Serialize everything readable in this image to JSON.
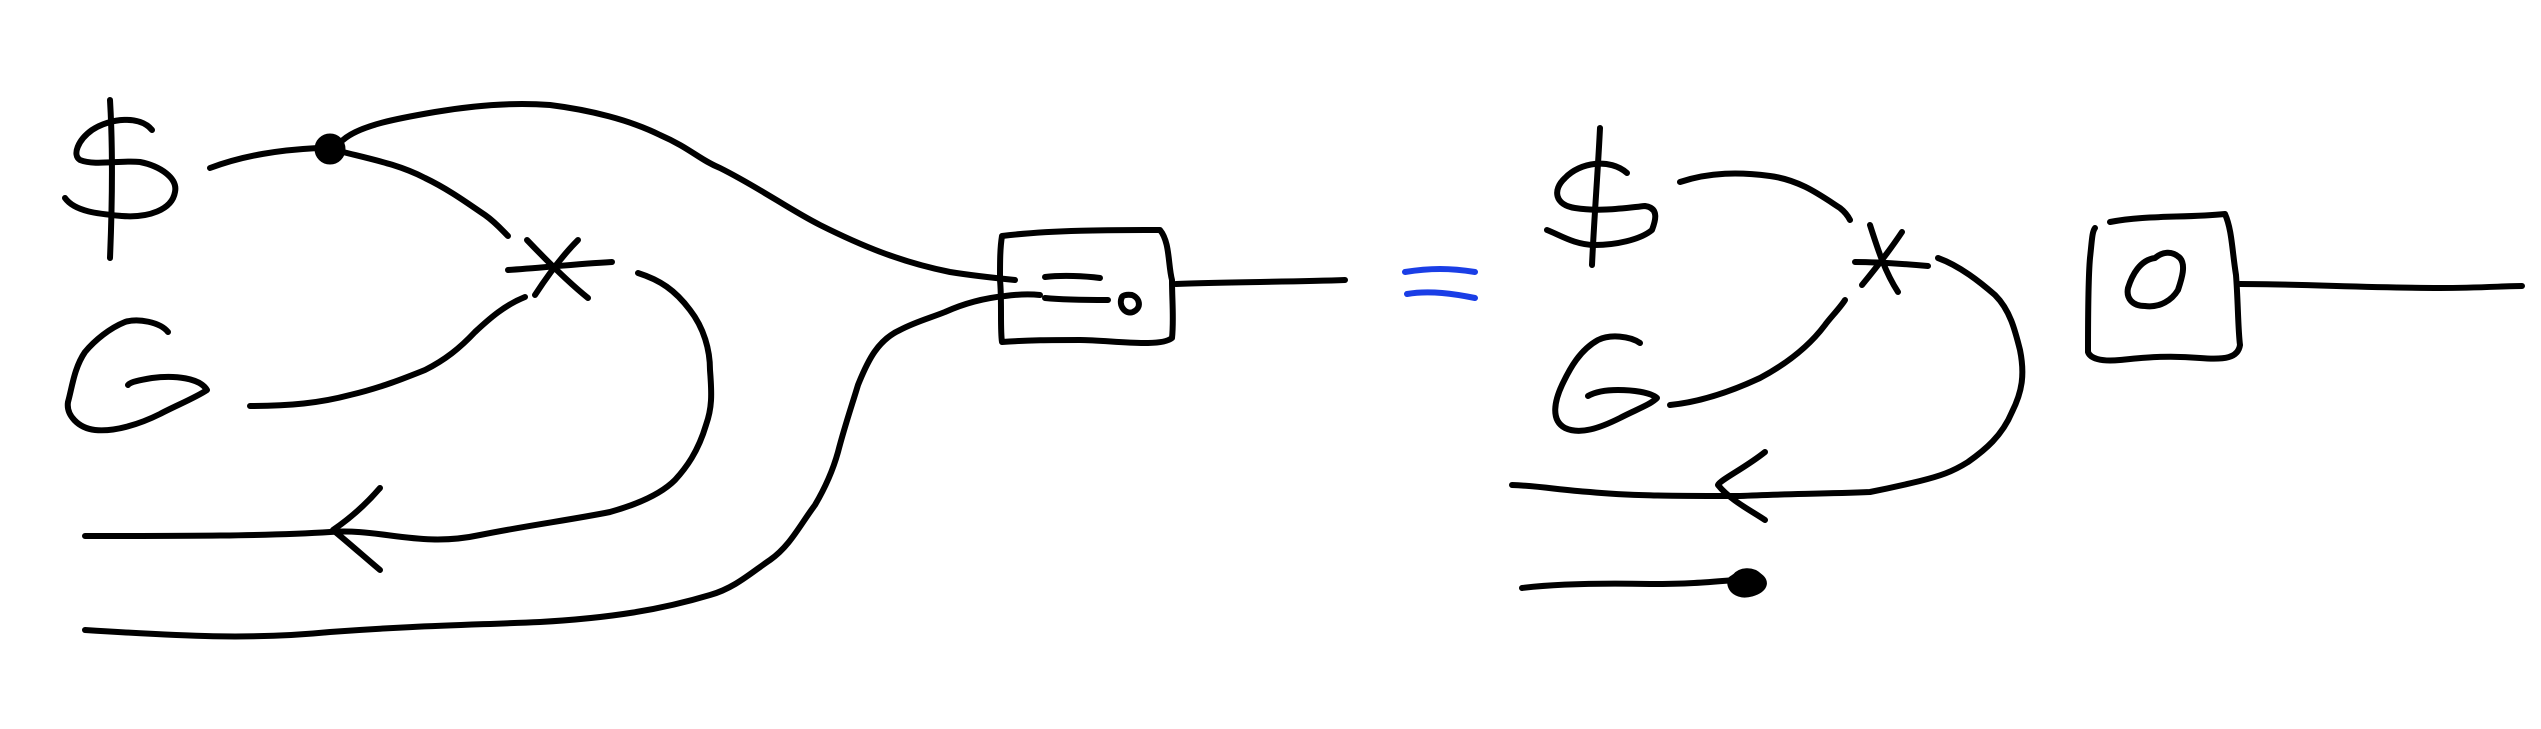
{
  "colors": {
    "ink": "#000000",
    "equals_sign": "#1a3ee6",
    "background": "#ffffff"
  },
  "icons": {
    "dollar": "dollar-sign-glyph",
    "spiral": "spiral-glyph",
    "star": "asterisk-glyph",
    "box": "box-node",
    "equals": "equals-sign"
  }
}
